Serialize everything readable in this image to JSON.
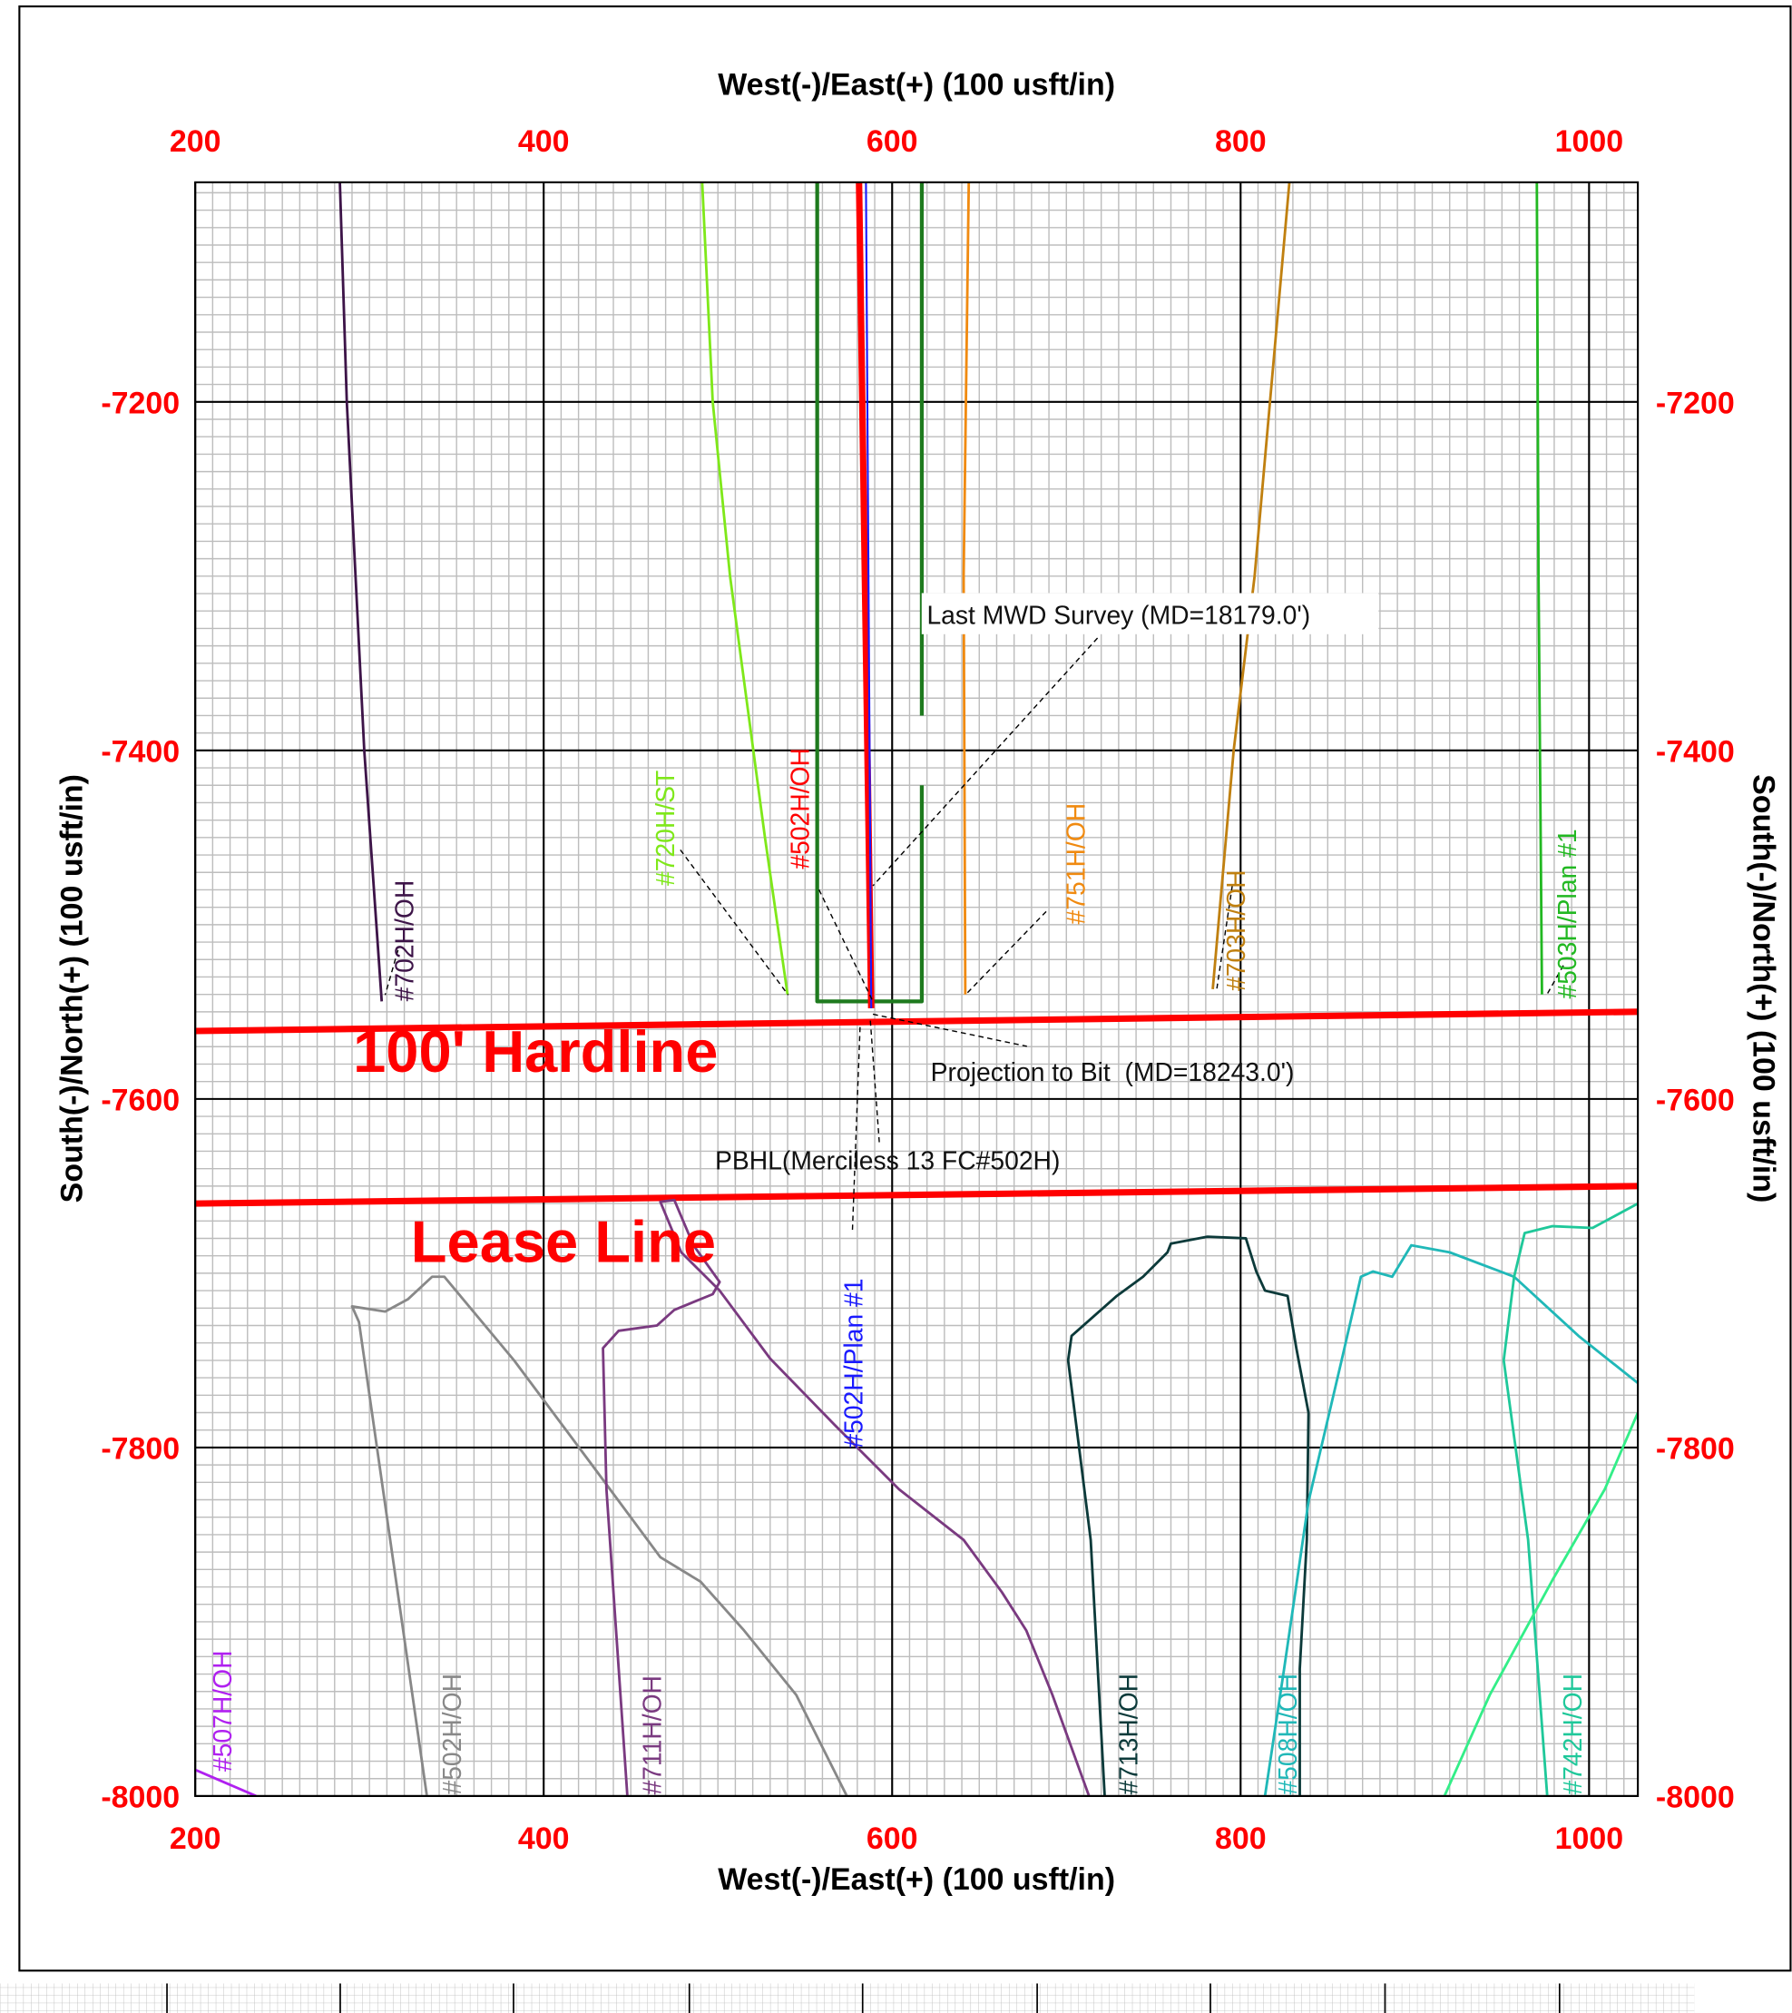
{
  "chart_data": {
    "type": "line",
    "title": "West(-)/East(+) (100 usft/in)",
    "xlabel": "West(-)/East(+) (100 usft/in)",
    "ylabel": "South(-)/North(+) (100 usft/in)",
    "xlim": [
      200,
      1028
    ],
    "ylim": [
      -8000,
      -7074
    ],
    "xticks": [
      200,
      400,
      600,
      800,
      1000
    ],
    "yticks": [
      -8000,
      -7800,
      -7600,
      -7400,
      -7200
    ],
    "grid": true,
    "annotations": [
      "Last MWD Survey (MD=18179.0')",
      "Projection to Bit  (MD=18243.0')",
      "PBHL(Merciless 13 FC#502H)"
    ],
    "series": [
      {
        "name": "#702H/OH",
        "color": "#3d1448",
        "width": 2,
        "x": [
          283,
          287,
          297,
          307
        ],
        "y": [
          -7074,
          -7200,
          -7400,
          -7544
        ]
      },
      {
        "name": "#720H/ST",
        "color": "#7fe81a",
        "width": 2,
        "x": [
          491,
          497,
          507,
          527,
          540
        ],
        "y": [
          -7074,
          -7200,
          -7300,
          -7450,
          -7540
        ]
      },
      {
        "color": "#1e7a1e",
        "width": 3,
        "x": [
          557,
          557,
          617,
          617,
          null,
          617,
          617
        ],
        "y": [
          -7074,
          -7544,
          -7544,
          -7420,
          null,
          -7380,
          -7074
        ]
      },
      {
        "name": "#502H/OH",
        "color": "#ff0000",
        "width": 5,
        "x": [
          581,
          588
        ],
        "y": [
          -7074,
          -7548
        ]
      },
      {
        "name": "#502H/Plan #1",
        "color": "#1a1aff",
        "width": 1.5,
        "x": [
          585,
          588
        ],
        "y": [
          -7074,
          -7548
        ]
      },
      {
        "name": "#751H/OH",
        "color": "#f08a10",
        "width": 2,
        "x": [
          644,
          641,
          642
        ],
        "y": [
          -7074,
          -7300,
          -7540
        ]
      },
      {
        "name": "#703H/OH",
        "color": "#c08010",
        "width": 2,
        "x": [
          828,
          808,
          796,
          784
        ],
        "y": [
          -7074,
          -7300,
          -7400,
          -7537
        ]
      },
      {
        "name": "#503H/Plan #1",
        "color": "#22b822",
        "width": 2,
        "x": [
          970,
          971,
          973
        ],
        "y": [
          -7074,
          -7300,
          -7540
        ]
      },
      {
        "name": "100' Hardline",
        "color": "#ff0000",
        "width": 5,
        "x": [
          200,
          1028
        ],
        "y": [
          -7561,
          -7550
        ]
      },
      {
        "name": "Lease Line",
        "color": "#ff0000",
        "width": 5,
        "x": [
          200,
          1028
        ],
        "y": [
          -7660,
          -7650
        ]
      },
      {
        "name": "#502H/OH",
        "color": "#888888",
        "width": 2,
        "x": [
          333,
          294,
          290,
          309,
          322,
          336,
          343,
          383,
          427,
          467,
          490,
          515,
          545,
          574
        ],
        "y": [
          -8000,
          -7728,
          -7719,
          -7722,
          -7715,
          -7702,
          -7702,
          -7750,
          -7809,
          -7863,
          -7877,
          -7905,
          -7942,
          -8000
        ]
      },
      {
        "name": "#711H/OH",
        "color": "#7a3a80",
        "width": 2,
        "x": [
          448,
          436,
          434,
          443,
          465,
          475,
          497,
          501,
          486,
          475,
          467,
          479,
          501,
          530,
          567,
          604,
          641,
          663,
          677,
          692,
          713
        ],
        "y": [
          -8000,
          -7824,
          -7743,
          -7733,
          -7730,
          -7721,
          -7712,
          -7705,
          -7684,
          -7658,
          -7659,
          -7688,
          -7710,
          -7749,
          -7787,
          -7824,
          -7853,
          -7883,
          -7905,
          -7942,
          -8000
        ]
      },
      {
        "name": "#713H/OH",
        "color": "#0c3a3a",
        "width": 2,
        "x": [
          722,
          714,
          701,
          703,
          729,
          744,
          758,
          760,
          781,
          803,
          809,
          814,
          827,
          832,
          839,
          838,
          834,
          834
        ],
        "y": [
          -8000,
          -7853,
          -7750,
          -7736,
          -7713,
          -7702,
          -7688,
          -7683,
          -7679,
          -7680,
          -7699,
          -7710,
          -7713,
          -7743,
          -7780,
          -7853,
          -7927,
          -8000
        ]
      },
      {
        "name": "#508H/OH",
        "color": "#20b8b8",
        "width": 2,
        "x": [
          814,
          825,
          839,
          858,
          869,
          876,
          887,
          898,
          920,
          957,
          994,
          1028
        ],
        "y": [
          -8000,
          -7927,
          -7831,
          -7750,
          -7702,
          -7699,
          -7702,
          -7684,
          -7688,
          -7702,
          -7736,
          -7763
        ]
      },
      {
        "name": "#742H/OH",
        "color": "#1fc89a",
        "width": 2,
        "x": [
          976,
          965,
          951,
          957,
          963,
          979,
          1002,
          1028
        ],
        "y": [
          -8000,
          -7853,
          -7750,
          -7702,
          -7677,
          -7673,
          -7674,
          -7660
        ]
      },
      {
        "color": "#33ee88",
        "width": 2,
        "x": [
          917,
          943,
          979,
          1009,
          1028
        ],
        "y": [
          -8000,
          -7942,
          -7876,
          -7824,
          -7780
        ]
      },
      {
        "name": "#507H/OH",
        "color": "#b020f0",
        "width": 2,
        "x": [
          200,
          235
        ],
        "y": [
          -7985,
          -8000
        ]
      }
    ]
  }
}
